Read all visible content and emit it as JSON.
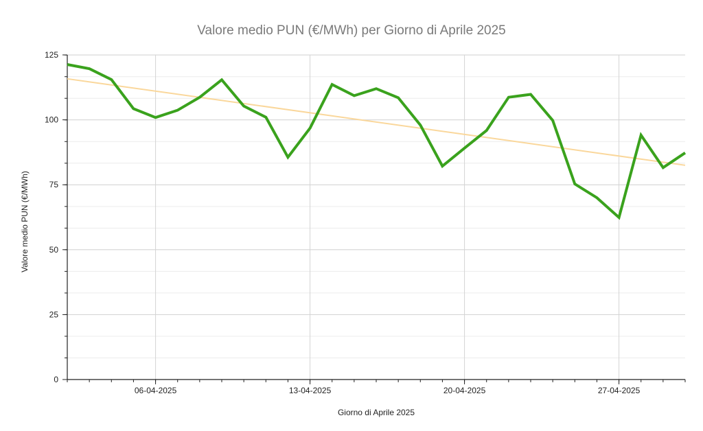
{
  "chart_data": {
    "type": "line",
    "title": "Valore medio PUN (€/MWh) per Giorno di Aprile 2025",
    "xlabel": "Giorno di Aprile 2025",
    "ylabel": "Valore medio PUN (€/MWh)",
    "x": [
      "2025-04-02",
      "2025-04-03",
      "2025-04-04",
      "2025-04-05",
      "2025-04-06",
      "2025-04-07",
      "2025-04-08",
      "2025-04-09",
      "2025-04-10",
      "2025-04-11",
      "2025-04-12",
      "2025-04-13",
      "2025-04-14",
      "2025-04-15",
      "2025-04-16",
      "2025-04-17",
      "2025-04-18",
      "2025-04-19",
      "2025-04-20",
      "2025-04-21",
      "2025-04-22",
      "2025-04-23",
      "2025-04-24",
      "2025-04-25",
      "2025-04-26",
      "2025-04-27",
      "2025-04-28",
      "2025-04-29",
      "2025-04-30"
    ],
    "xlim": [
      "2025-04-02",
      "2025-04-30"
    ],
    "x_ticks": [
      {
        "date": "2025-04-06",
        "label": "06-04-2025"
      },
      {
        "date": "2025-04-13",
        "label": "13-04-2025"
      },
      {
        "date": "2025-04-20",
        "label": "20-04-2025"
      },
      {
        "date": "2025-04-27",
        "label": "27-04-2025"
      }
    ],
    "ylim": [
      0,
      125
    ],
    "y_ticks": [
      0,
      25,
      50,
      75,
      100,
      125
    ],
    "y_minor_step": 8.33,
    "grid": true,
    "series": [
      {
        "values": [
          121.3,
          119.7,
          115.5,
          104.3,
          100.9,
          103.7,
          108.7,
          115.4,
          105.3,
          101.0,
          85.6,
          96.8,
          113.6,
          109.3,
          112.0,
          108.5,
          98.0,
          82.2,
          89.1,
          95.9,
          108.7,
          109.8,
          99.8,
          75.3,
          70.0,
          62.4,
          94.1,
          81.6,
          87.3
        ],
        "color": "#3aa21d"
      }
    ],
    "trendline": {
      "start": [
        "2025-04-02",
        115.8
      ],
      "end": [
        "2025-04-30",
        82.5
      ],
      "color": "#fad79b"
    }
  }
}
